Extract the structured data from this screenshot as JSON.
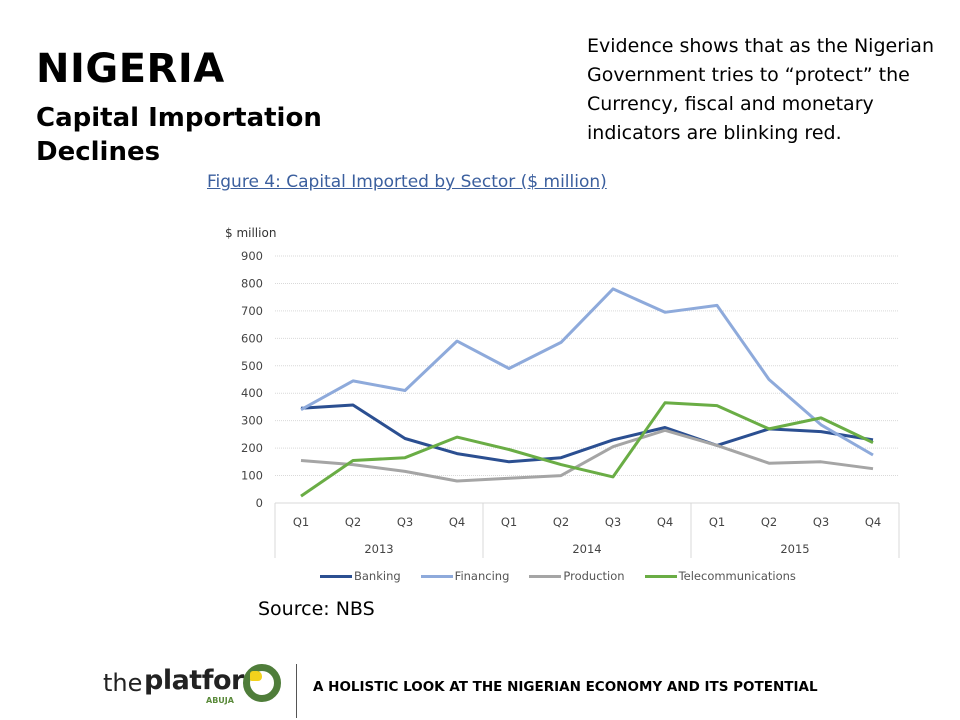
{
  "header": {
    "title": "NIGERIA",
    "subtitle_line1": "Capital Importation",
    "subtitle_line2": "Declines"
  },
  "evidence": {
    "line1": "Evidence shows that as the Nigerian",
    "line2": "Government tries to “protect” the",
    "line3": "Currency,  fiscal and monetary",
    "line4": "indicators are blinking red."
  },
  "source": "Source: NBS",
  "footer": {
    "logo_the": "the",
    "logo_platform": "platform",
    "logo_abuja": "ABUJA",
    "tagline": "A HOLISTIC LOOK AT THE NIGERIAN ECONOMY AND ITS POTENTIAL"
  },
  "chart_data": {
    "type": "line",
    "title": "Figure 4: Capital Imported by Sector ($ million)",
    "ylabel": "$ million",
    "xlabel": "",
    "ylim": [
      0,
      900
    ],
    "yticks": [
      "0",
      "100",
      "200",
      "300",
      "400",
      "500",
      "600",
      "700",
      "800",
      "900"
    ],
    "grid": true,
    "legend_position": "bottom",
    "categories": [
      "Q1",
      "Q2",
      "Q3",
      "Q4",
      "Q1",
      "Q2",
      "Q3",
      "Q4",
      "Q1",
      "Q2",
      "Q3",
      "Q4"
    ],
    "years": [
      "2013",
      "2014",
      "2015"
    ],
    "series": [
      {
        "name": "Banking",
        "color": "#2b4f91",
        "values": [
          345,
          357,
          235,
          180,
          150,
          165,
          230,
          275,
          210,
          270,
          260,
          230
        ]
      },
      {
        "name": "Financing",
        "color": "#8eaadb",
        "values": [
          340,
          445,
          410,
          590,
          490,
          585,
          780,
          695,
          720,
          450,
          285,
          175
        ]
      },
      {
        "name": "Production",
        "color": "#a5a5a5",
        "values": [
          155,
          140,
          115,
          80,
          90,
          100,
          205,
          265,
          210,
          145,
          150,
          125
        ]
      },
      {
        "name": "Telecommunications",
        "color": "#6aad45",
        "values": [
          25,
          155,
          165,
          240,
          195,
          140,
          95,
          365,
          355,
          270,
          310,
          220
        ]
      }
    ]
  }
}
